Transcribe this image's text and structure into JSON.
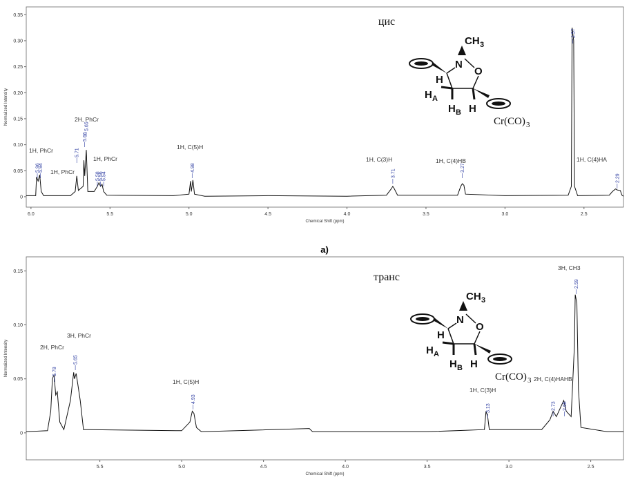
{
  "chart_data": [
    {
      "type": "line",
      "title": "цис",
      "xlabel": "Chemical Shift (ppm)",
      "ylabel": "Normalized Intensity",
      "xlim": [
        6.03,
        2.25
      ],
      "ylim": [
        -0.02,
        0.365
      ],
      "xticks": [
        {
          "value": 6,
          "label": "6.0"
        },
        5.5,
        {
          "value": 5,
          "label": "5.0"
        },
        4.5,
        {
          "value": 4,
          "label": "4.0"
        },
        3.5,
        {
          "value": 3,
          "label": "3.0"
        },
        2.5
      ],
      "yticks": [
        0,
        0.05,
        {
          "value": 0.1,
          "label": "0.10"
        },
        0.15,
        {
          "value": 0.2,
          "label": "0.20"
        },
        0.25,
        {
          "value": 0.3,
          "label": "0.30"
        },
        0.35
      ],
      "color": "#111111",
      "x": [
        6.03,
        5.97,
        5.965,
        5.955,
        5.945,
        5.935,
        5.92,
        5.75,
        5.72,
        5.71,
        5.7,
        5.67,
        5.665,
        5.66,
        5.65,
        5.64,
        5.6,
        5.58,
        5.57,
        5.56,
        5.55,
        5.54,
        5.52,
        5.1,
        5.0,
        4.99,
        4.985,
        4.975,
        4.965,
        4.9,
        4.5,
        4.0,
        3.75,
        3.72,
        3.71,
        3.7,
        3.68,
        3.3,
        3.28,
        3.27,
        3.26,
        3.25,
        3.0,
        2.6,
        2.58,
        2.575,
        2.565,
        2.56,
        2.54,
        2.34,
        2.32,
        2.3,
        2.29,
        2.27,
        2.26,
        2.25
      ],
      "values": [
        0.002,
        0.002,
        0.038,
        0.03,
        0.042,
        0.01,
        0.002,
        0.002,
        0.01,
        0.04,
        0.012,
        0.02,
        0.07,
        0.04,
        0.09,
        0.01,
        0.01,
        0.02,
        0.027,
        0.02,
        0.024,
        0.01,
        0.003,
        0.002,
        0.005,
        0.03,
        0.01,
        0.032,
        0.005,
        0.001,
        0.002,
        0.001,
        0.003,
        0.015,
        0.02,
        0.015,
        0.003,
        0.003,
        0.02,
        0.025,
        0.022,
        0.005,
        0.002,
        0.003,
        0.02,
        0.325,
        0.3,
        0.02,
        0.002,
        0.003,
        0.01,
        0.015,
        0.013,
        0.012,
        0.003,
        0.001
      ],
      "peak_labels": [
        5.96,
        5.94,
        5.71,
        5.66,
        5.65,
        5.58,
        5.56,
        5.54,
        4.98,
        3.71,
        3.27,
        2.57,
        2.29
      ],
      "assignments": [
        "1H, PhCr",
        "1H, PhCr",
        "2H, PhCr",
        "1H, PhCr",
        "1H, C(5)H",
        "1H, C(3)H",
        "1H, C(4)HB",
        "1H, C(4)HA"
      ],
      "structure": [
        "CH",
        "3",
        "N",
        "O",
        "H",
        "H",
        "A",
        "H",
        "B",
        "H",
        "Cr(CO)",
        "3"
      ],
      "caption": "a)"
    },
    {
      "type": "line",
      "title": "транс",
      "xlabel": "Chemical Shift (ppm)",
      "ylabel": "Normalized Intensity",
      "xlim": [
        5.95,
        2.3
      ],
      "ylim": [
        -0.025,
        0.163
      ],
      "xticks": [
        5.5,
        {
          "value": 5,
          "label": "5.0"
        },
        4.5,
        {
          "value": 4,
          "label": "4.0"
        },
        3.5,
        {
          "value": 3,
          "label": "3.0"
        },
        2.5
      ],
      "yticks": [
        0,
        0.05,
        {
          "value": 0.1,
          "label": "0.10"
        },
        0.15
      ],
      "color": "#111111",
      "x": [
        5.95,
        5.82,
        5.8,
        5.79,
        5.78,
        5.77,
        5.76,
        5.745,
        5.72,
        5.68,
        5.66,
        5.655,
        5.645,
        5.635,
        5.62,
        5.6,
        5.0,
        4.95,
        4.935,
        4.925,
        4.91,
        4.88,
        4.22,
        4.2,
        3.5,
        3.15,
        3.14,
        3.13,
        3.12,
        2.8,
        2.75,
        2.73,
        2.71,
        2.68,
        2.665,
        2.65,
        2.62,
        2.6,
        2.595,
        2.585,
        2.575,
        2.56,
        2.4,
        2.3
      ],
      "values": [
        0.001,
        0.002,
        0.02,
        0.05,
        0.054,
        0.035,
        0.038,
        0.01,
        0.003,
        0.03,
        0.056,
        0.05,
        0.055,
        0.045,
        0.03,
        0.003,
        0.002,
        0.01,
        0.02,
        0.018,
        0.005,
        0.001,
        0.004,
        0.001,
        0.001,
        0.003,
        0.02,
        0.015,
        0.003,
        0.003,
        0.012,
        0.02,
        0.015,
        0.025,
        0.03,
        0.02,
        0.015,
        0.08,
        0.128,
        0.12,
        0.04,
        0.005,
        0.001,
        0.001
      ],
      "peak_labels": [
        5.78,
        5.65,
        4.93,
        3.13,
        2.73,
        2.66,
        2.59
      ],
      "assignments": [
        "2H, PhCr",
        "3H, PhCr",
        "1H, C(5)H",
        "1H, C(3)H",
        "2H, C(4)HAHB",
        "3H, CH3"
      ],
      "structure": [
        "CH",
        "3",
        "N",
        "O",
        "H",
        "H",
        "A",
        "H",
        "B",
        "H",
        "Cr(CO)",
        "3"
      ]
    }
  ]
}
